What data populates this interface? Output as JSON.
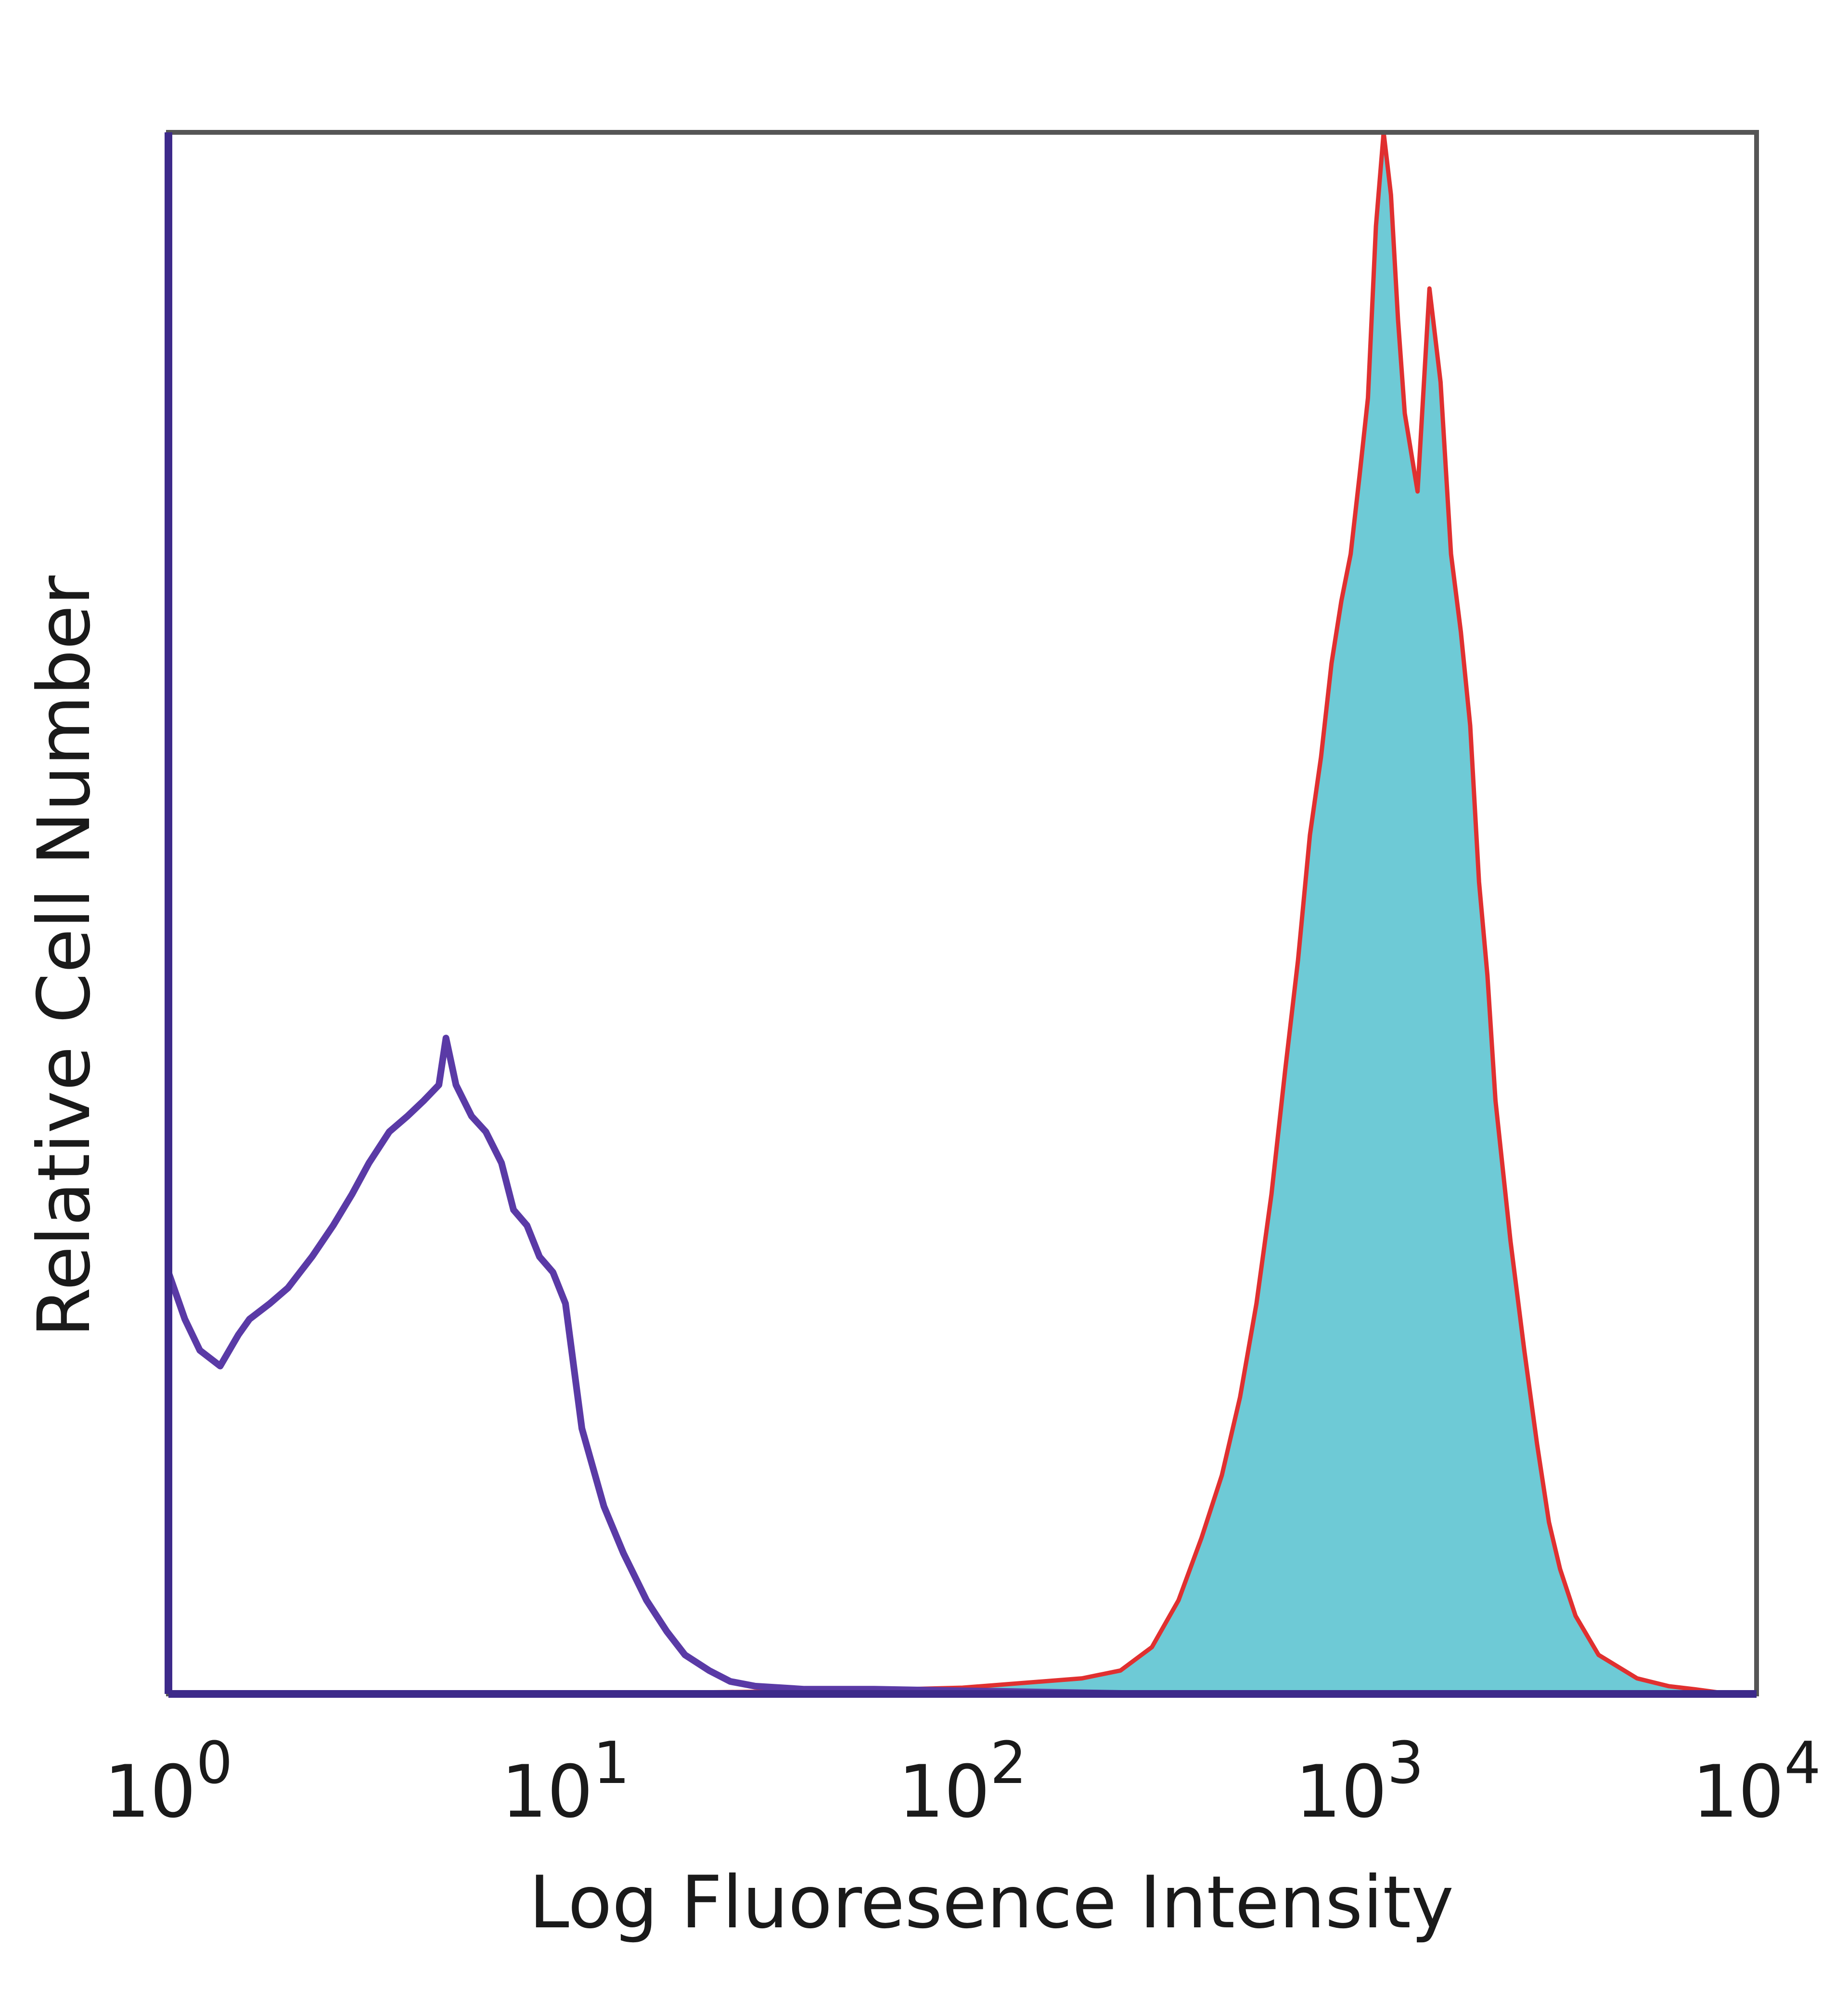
{
  "chart_data": {
    "type": "area",
    "title": "",
    "xlabel": "Log Fluoresence Intensity",
    "ylabel": "Relative Cell Number",
    "x_scale": "log",
    "xlim": [
      1,
      10000
    ],
    "ylim": [
      0,
      100
    ],
    "grid": false,
    "legend": "none",
    "ticks": [
      {
        "base": "10",
        "exp": "0"
      },
      {
        "base": "10",
        "exp": "1"
      },
      {
        "base": "10",
        "exp": "2"
      },
      {
        "base": "10",
        "exp": "3"
      },
      {
        "base": "10",
        "exp": "4"
      }
    ],
    "series": [
      {
        "style": "outline",
        "color": "#5a3aa6",
        "x": [
          1.0,
          1.1,
          1.2,
          1.35,
          1.5,
          1.6,
          1.8,
          2.0,
          2.3,
          2.6,
          2.9,
          3.2,
          3.6,
          4.0,
          4.4,
          4.8,
          5.0,
          5.3,
          5.8,
          6.3,
          6.9,
          7.4,
          8.0,
          8.6,
          9.3,
          10.0,
          11.0,
          12.5,
          14.0,
          16.0,
          18.0,
          20.0,
          23.0,
          26.0,
          30.0,
          40.0,
          60.0,
          100.0,
          300.0,
          1000.0,
          10000.0
        ],
        "values": [
          27,
          24,
          22,
          21,
          23,
          24,
          25,
          26,
          28,
          30,
          32,
          34,
          36,
          37,
          38,
          39,
          42,
          39,
          37,
          36,
          34,
          31,
          30,
          28,
          27,
          25,
          17,
          12,
          9,
          6,
          4,
          2.5,
          1.5,
          0.8,
          0.5,
          0.3,
          0.3,
          0.2,
          0,
          0,
          0
        ]
      },
      {
        "style": "filled",
        "color": "#6ecad6",
        "edge_color": "#e03030",
        "x": [
          1.0,
          10.0,
          50.0,
          100.0,
          200.0,
          250.0,
          300.0,
          350.0,
          400.0,
          450.0,
          500.0,
          550.0,
          600.0,
          650.0,
          700.0,
          750.0,
          800.0,
          850.0,
          900.0,
          950.0,
          1000.0,
          1050.0,
          1100.0,
          1150.0,
          1200.0,
          1250.0,
          1300.0,
          1400.0,
          1500.0,
          1600.0,
          1700.0,
          1800.0,
          1900.0,
          2000.0,
          2100.0,
          2200.0,
          2400.0,
          2600.0,
          2800.0,
          3000.0,
          3200.0,
          3500.0,
          4000.0,
          5000.0,
          6000.0,
          7000.0,
          8000.0,
          10000.0
        ],
        "values": [
          0,
          0,
          0.2,
          0.4,
          1.0,
          1.5,
          3.0,
          6.0,
          10.0,
          14.0,
          19.0,
          25.0,
          32.0,
          40.0,
          47.0,
          55.0,
          60.0,
          66.0,
          70.0,
          73.0,
          78.0,
          83.0,
          94.0,
          100.0,
          96.0,
          88.0,
          82.0,
          77.0,
          90.0,
          84.0,
          73.0,
          68.0,
          62.0,
          52.0,
          46.0,
          38.0,
          29.0,
          22.0,
          16.0,
          11.0,
          8.0,
          5.0,
          2.5,
          1.0,
          0.5,
          0.3,
          0.1,
          0
        ]
      }
    ]
  }
}
